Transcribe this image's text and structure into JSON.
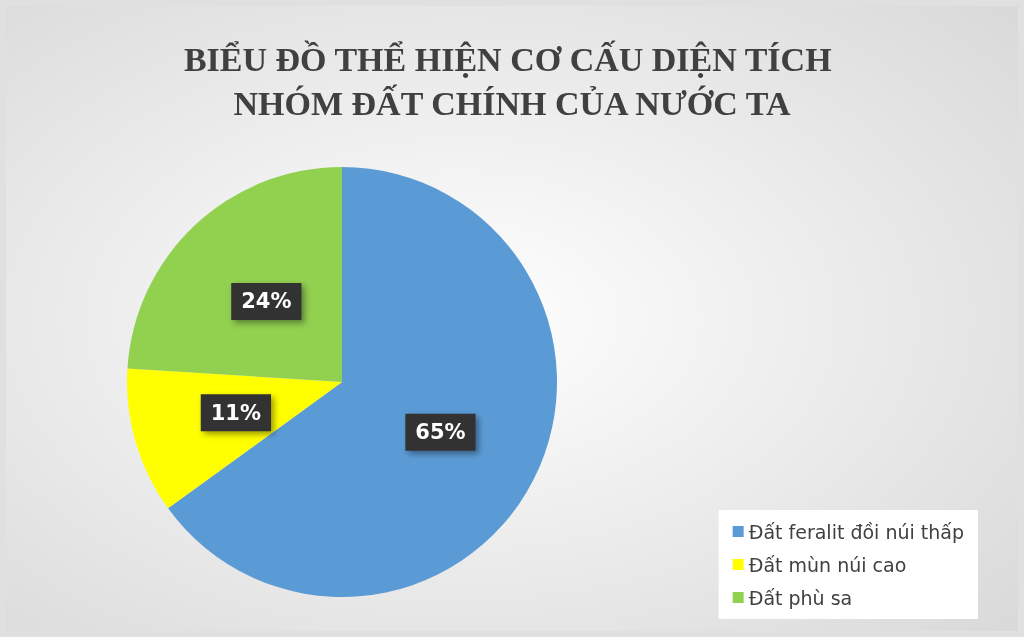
{
  "chart_data": {
    "type": "pie",
    "title": "BIỂU ĐỒ THỂ HIỆN CƠ CẤU DIỆN TÍCH NHÓM ĐẤT CHÍNH CỦA NƯỚC TA",
    "categories": [
      "Đất feralit đồi núi thấp",
      "Đất mùn núi cao",
      "Đất phù sa"
    ],
    "values": [
      65,
      11,
      24
    ],
    "colors": [
      "#5b9bd5",
      "#ffff00",
      "#92d050"
    ],
    "value_labels": [
      "65%",
      "11%",
      "24%"
    ],
    "legend": "bottom right"
  }
}
